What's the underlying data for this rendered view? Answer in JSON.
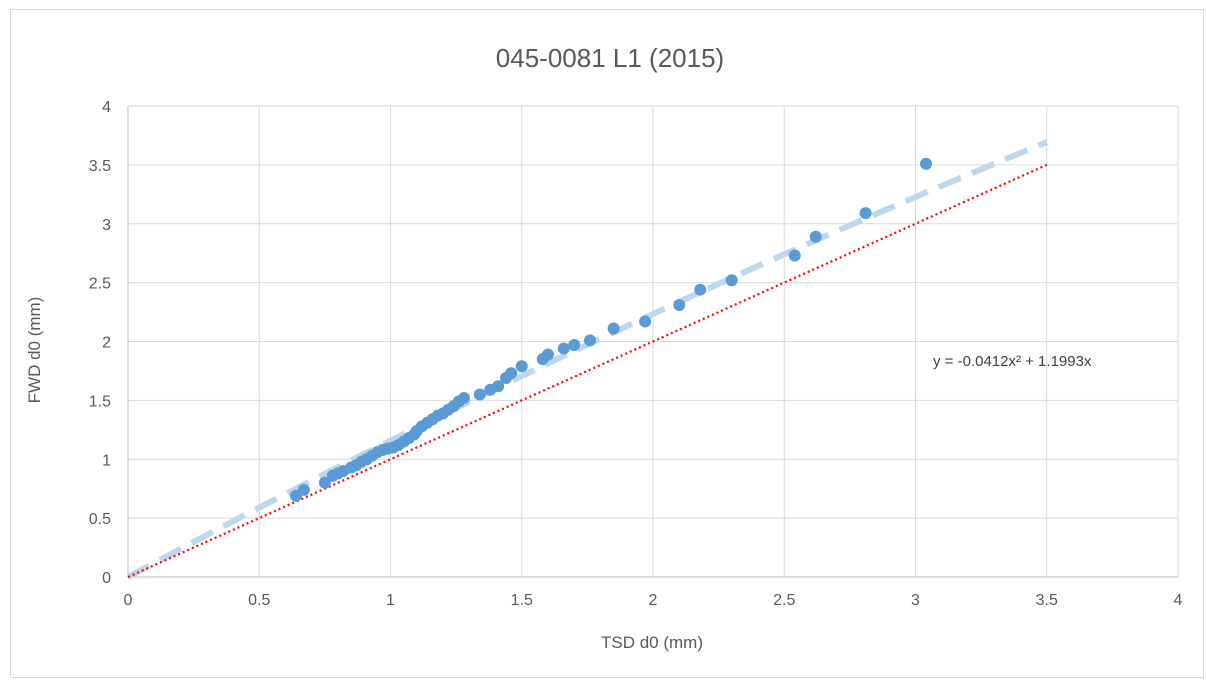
{
  "chart_data": {
    "type": "scatter",
    "title": "045-0081 L1 (2015)",
    "xlabel": "TSD d0 (mm)",
    "ylabel": "FWD d0 (mm)",
    "xlim": [
      0,
      4
    ],
    "ylim": [
      0,
      4
    ],
    "x_ticks": [
      "0",
      "0.5",
      "1",
      "1.5",
      "2",
      "2.5",
      "3",
      "3.5",
      "4"
    ],
    "y_ticks": [
      "0",
      "0.5",
      "1",
      "1.5",
      "2",
      "2.5",
      "3",
      "3.5",
      "4"
    ],
    "grid": true,
    "colors": {
      "points": "#5b9bd5",
      "trendline": "#bdd7ee",
      "equality_line": "#ff0000",
      "grid": "#d9d9d9",
      "axis": "#bfbfbf"
    },
    "series": [
      {
        "kind": "scatter",
        "points": [
          [
            0.64,
            0.69
          ],
          [
            0.67,
            0.74
          ],
          [
            0.75,
            0.8
          ],
          [
            0.78,
            0.86
          ],
          [
            0.8,
            0.88
          ],
          [
            0.82,
            0.9
          ],
          [
            0.85,
            0.93
          ],
          [
            0.87,
            0.95
          ],
          [
            0.89,
            0.98
          ],
          [
            0.91,
            1.0
          ],
          [
            0.93,
            1.03
          ],
          [
            0.95,
            1.06
          ],
          [
            0.97,
            1.08
          ],
          [
            0.99,
            1.09
          ],
          [
            1.01,
            1.1
          ],
          [
            1.03,
            1.12
          ],
          [
            1.05,
            1.15
          ],
          [
            1.07,
            1.18
          ],
          [
            1.09,
            1.21
          ],
          [
            1.1,
            1.24
          ],
          [
            1.12,
            1.28
          ],
          [
            1.14,
            1.31
          ],
          [
            1.16,
            1.34
          ],
          [
            1.18,
            1.37
          ],
          [
            1.2,
            1.39
          ],
          [
            1.22,
            1.42
          ],
          [
            1.24,
            1.45
          ],
          [
            1.26,
            1.49
          ],
          [
            1.28,
            1.52
          ],
          [
            1.34,
            1.55
          ],
          [
            1.38,
            1.59
          ],
          [
            1.41,
            1.62
          ],
          [
            1.44,
            1.69
          ],
          [
            1.46,
            1.73
          ],
          [
            1.5,
            1.79
          ],
          [
            1.58,
            1.85
          ],
          [
            1.6,
            1.89
          ],
          [
            1.66,
            1.94
          ],
          [
            1.7,
            1.97
          ],
          [
            1.76,
            2.01
          ],
          [
            1.85,
            2.11
          ],
          [
            1.97,
            2.17
          ],
          [
            2.1,
            2.31
          ],
          [
            2.18,
            2.44
          ],
          [
            2.3,
            2.52
          ],
          [
            2.54,
            2.73
          ],
          [
            2.62,
            2.89
          ],
          [
            2.81,
            3.09
          ],
          [
            3.04,
            3.51
          ]
        ]
      },
      {
        "kind": "trendline",
        "equation": "y = -0.0412x² + 1.1993x",
        "coefficients": {
          "a": -0.0412,
          "b": 1.1993,
          "c": 0
        },
        "x_range": [
          0,
          3.5
        ]
      },
      {
        "kind": "equality_line",
        "points": [
          [
            0,
            0
          ],
          [
            3.5,
            3.5
          ]
        ]
      }
    ]
  }
}
